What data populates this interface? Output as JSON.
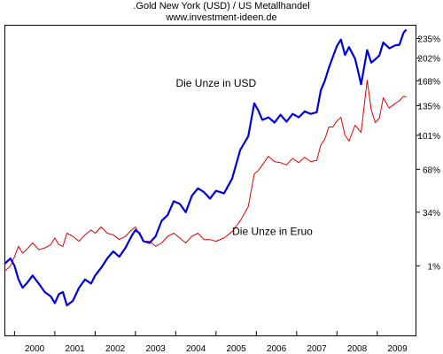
{
  "chart_data": {
    "type": "line",
    "title": ".Gold New York (USD) / US Metallhandel",
    "subtitle": "www.investment-ideen.de",
    "x_tick_labels": [
      "2000",
      "2001",
      "2002",
      "2003",
      "2004",
      "2005",
      "2006",
      "2007",
      "2008",
      "2009"
    ],
    "y_tick_labels": [
      {
        "label": "1%",
        "value": 1
      },
      {
        "label": "34%",
        "value": 34
      },
      {
        "label": "68%",
        "value": 68
      },
      {
        "label": "101%",
        "value": 101
      },
      {
        "label": "135%",
        "value": 135
      },
      {
        "label": "168%",
        "value": 168
      },
      {
        "label": "202%",
        "value": 202
      },
      {
        "label": "235%",
        "value": 235
      }
    ],
    "xlim": [
      1999.75,
      2009.95
    ],
    "ylim": [
      -30,
      260
    ],
    "y_scale": "log-relative-change",
    "grid": false,
    "annotations": [
      {
        "id": "usd",
        "text": "Die Unze in USD",
        "x": 2005.0,
        "y": 160
      },
      {
        "id": "eur",
        "text": "Die Unze in Eruo",
        "x": 2006.4,
        "y": 19
      }
    ],
    "series": [
      {
        "id": "usd",
        "color": "#0000dd",
        "x": [
          1999.75,
          1999.9,
          2000.0,
          2000.1,
          2000.2,
          2000.3,
          2000.45,
          2000.6,
          2000.75,
          2000.9,
          2001.0,
          2001.1,
          2001.2,
          2001.3,
          2001.45,
          2001.6,
          2001.75,
          2001.9,
          2002.0,
          2002.15,
          2002.3,
          2002.45,
          2002.6,
          2002.75,
          2002.9,
          2003.0,
          2003.1,
          2003.2,
          2003.35,
          2003.5,
          2003.65,
          2003.8,
          2003.95,
          2004.1,
          2004.25,
          2004.4,
          2004.55,
          2004.7,
          2004.85,
          2005.0,
          2005.2,
          2005.4,
          2005.6,
          2005.8,
          2005.95,
          2006.05,
          2006.15,
          2006.3,
          2006.45,
          2006.6,
          2006.75,
          2006.9,
          2007.05,
          2007.2,
          2007.35,
          2007.5,
          2007.6,
          2007.7,
          2007.8,
          2007.9,
          2008.0,
          2008.1,
          2008.2,
          2008.3,
          2008.45,
          2008.6,
          2008.75,
          2008.85,
          2008.95,
          2009.05,
          2009.15,
          2009.3,
          2009.45,
          2009.55,
          2009.65,
          2009.72
        ],
        "values": [
          2,
          5,
          1,
          -6,
          -10,
          -8,
          -4,
          -8,
          -12,
          -14,
          -17,
          -13,
          -12,
          -18,
          -16,
          -10,
          -6,
          -8,
          -4,
          0,
          5,
          9,
          6,
          11,
          18,
          22,
          20,
          15,
          14,
          18,
          28,
          32,
          42,
          40,
          34,
          46,
          52,
          49,
          44,
          50,
          48,
          60,
          86,
          100,
          138,
          129,
          118,
          121,
          115,
          124,
          116,
          125,
          121,
          128,
          125,
          127,
          155,
          168,
          187,
          204,
          222,
          233,
          207,
          220,
          201,
          163,
          215,
          195,
          200,
          206,
          228,
          218,
          223,
          224,
          245,
          251
        ]
      },
      {
        "id": "eur",
        "color": "#dd0000",
        "x": [
          1999.75,
          1999.9,
          2000.0,
          2000.1,
          2000.2,
          2000.3,
          2000.45,
          2000.6,
          2000.75,
          2000.9,
          2001.0,
          2001.1,
          2001.2,
          2001.3,
          2001.45,
          2001.6,
          2001.75,
          2001.9,
          2002.0,
          2002.15,
          2002.3,
          2002.45,
          2002.6,
          2002.75,
          2002.9,
          2003.0,
          2003.1,
          2003.2,
          2003.35,
          2003.5,
          2003.65,
          2003.8,
          2003.95,
          2004.1,
          2004.25,
          2004.4,
          2004.55,
          2004.7,
          2004.85,
          2005.0,
          2005.2,
          2005.4,
          2005.6,
          2005.8,
          2005.95,
          2006.05,
          2006.15,
          2006.3,
          2006.45,
          2006.6,
          2006.75,
          2006.9,
          2007.05,
          2007.2,
          2007.35,
          2007.5,
          2007.6,
          2007.7,
          2007.8,
          2007.9,
          2008.0,
          2008.1,
          2008.2,
          2008.3,
          2008.45,
          2008.6,
          2008.75,
          2008.85,
          2008.95,
          2009.05,
          2009.15,
          2009.3,
          2009.45,
          2009.55,
          2009.65,
          2009.72
        ],
        "values": [
          -2,
          1,
          6,
          12,
          8,
          10,
          14,
          10,
          11,
          13,
          17,
          13,
          12,
          20,
          18,
          15,
          19,
          22,
          20,
          24,
          20,
          19,
          16,
          18,
          22,
          24,
          19,
          15,
          15,
          12,
          14,
          18,
          20,
          17,
          14,
          18,
          20,
          16,
          16,
          15,
          17,
          21,
          28,
          38,
          64,
          67,
          72,
          80,
          75,
          74,
          72,
          78,
          74,
          79,
          75,
          76,
          91,
          97,
          110,
          110,
          117,
          121,
          101,
          95,
          112,
          104,
          169,
          130,
          115,
          120,
          145,
          132,
          138,
          141,
          147,
          146
        ]
      }
    ]
  }
}
